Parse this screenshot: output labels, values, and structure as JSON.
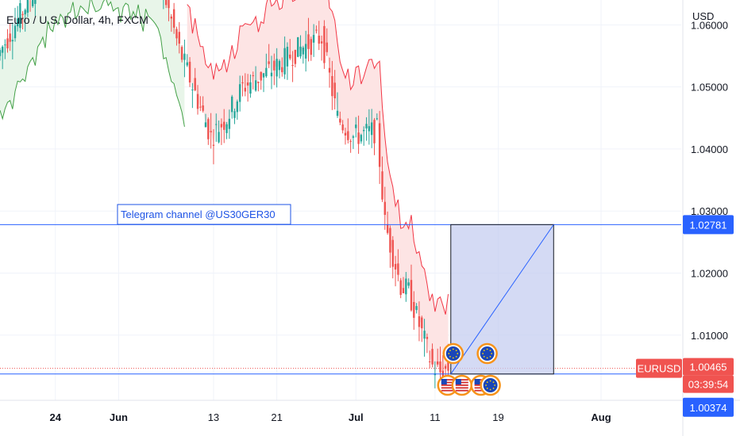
{
  "header": {
    "symbol_title": "Euro / U.S. Dollar, 4h, FXCM",
    "currency": "USD"
  },
  "annotation": {
    "text": "Telegram channel @US30GER30"
  },
  "price_labels": [
    {
      "name": "line-top-price-label",
      "text": "1.02781",
      "value": 1.02781,
      "bg": "#2962ff",
      "fg": "#ffffff"
    },
    {
      "name": "symbol-tag",
      "text": "EURUSD",
      "value": 1.00465,
      "bg": "#f05350",
      "fg": "#ffffff"
    },
    {
      "name": "last-price-label",
      "text": "1.00465",
      "value": 1.00465,
      "bg": "#f05350",
      "fg": "#ffffff"
    },
    {
      "name": "countdown-label",
      "text": "03:39:54",
      "value": 1.00465,
      "bg": "#f05350",
      "fg": "#ffffff"
    },
    {
      "name": "line-bottom-price-label",
      "text": "1.00374",
      "value": 1.00374,
      "bg": "#2962ff",
      "fg": "#ffffff"
    }
  ],
  "colors": {
    "up": "#26a69a",
    "down": "#ef5350",
    "blue": "#2962ff",
    "trail_up": "#43a047",
    "trail_down": "#f23645",
    "fill_up": "#e8f5e9",
    "fill_down": "#fde4e4",
    "box_fill": "#c5cef0",
    "grid": "#f0f3fa",
    "axis_text": "#131722"
  },
  "chart_data": {
    "type": "candlestick",
    "title": "Euro / U.S. Dollar, 4h, FXCM",
    "ylabel": "USD",
    "x_ticks": [
      "24",
      "Jun",
      "13",
      "21",
      "Jul",
      "11",
      "19",
      "Aug"
    ],
    "y_ticks": [
      "1.01000",
      "1.02000",
      "1.03000",
      "1.04000",
      "1.05000",
      "1.06000"
    ],
    "ylim": [
      0.9995,
      1.064
    ],
    "grid": true,
    "horizontal_lines": [
      1.02781,
      1.00374
    ],
    "last_price": 1.00465,
    "series": [
      {
        "name": "EURUSD",
        "values": [
          {
            "date": "2022-05-17",
            "close": 1.055
          },
          {
            "date": "2022-05-24",
            "close": 1.071
          },
          {
            "date": "2022-05-31",
            "close": 1.074
          },
          {
            "date": "2022-06-06",
            "close": 1.07
          },
          {
            "date": "2022-06-09",
            "close": 1.056
          },
          {
            "date": "2022-06-13",
            "close": 1.042
          },
          {
            "date": "2022-06-15",
            "close": 1.045
          },
          {
            "date": "2022-06-17",
            "close": 1.05
          },
          {
            "date": "2022-06-21",
            "close": 1.053
          },
          {
            "date": "2022-06-24",
            "close": 1.056
          },
          {
            "date": "2022-06-27",
            "close": 1.058
          },
          {
            "date": "2022-06-29",
            "close": 1.045
          },
          {
            "date": "2022-07-01",
            "close": 1.042
          },
          {
            "date": "2022-07-04",
            "close": 1.043
          },
          {
            "date": "2022-07-05",
            "close": 1.028
          },
          {
            "date": "2022-07-07",
            "close": 1.018
          },
          {
            "date": "2022-07-08",
            "close": 1.017
          },
          {
            "date": "2022-07-11",
            "close": 1.005
          },
          {
            "date": "2022-07-12",
            "close": 1.004
          },
          {
            "date": "2022-07-13",
            "close": 1.00465
          }
        ]
      }
    ]
  }
}
